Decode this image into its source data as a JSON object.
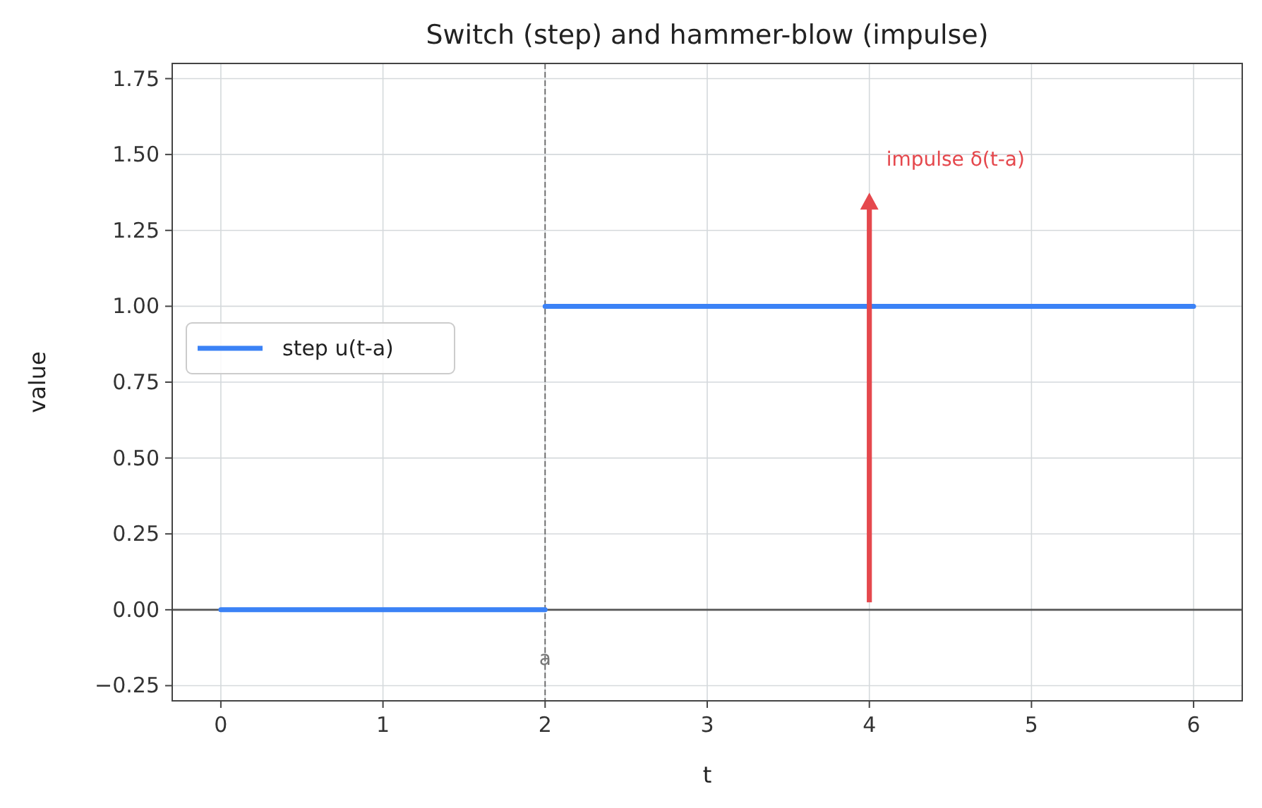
{
  "chart_data": {
    "type": "step",
    "title": "Switch (step) and hammer-blow (impulse)",
    "xlabel": "t",
    "ylabel": "value",
    "x": [
      0,
      2,
      2,
      6
    ],
    "series": [
      {
        "name": "step u(t-a)",
        "color": "#3b82f6",
        "values": [
          0,
          0,
          1,
          1
        ]
      }
    ],
    "xlim": [
      -0.3,
      6.3
    ],
    "xticks": [
      0,
      1,
      2,
      3,
      4,
      5,
      6
    ],
    "ylim": [
      -0.3,
      1.8
    ],
    "yticks": [
      {
        "value": -0.25,
        "label": "−0.25"
      },
      {
        "value": 0,
        "label": "0.00"
      },
      {
        "value": 0.25,
        "label": "0.25"
      },
      {
        "value": 0.5,
        "label": "0.50"
      },
      {
        "value": 0.75,
        "label": "0.75"
      },
      {
        "value": 1,
        "label": "1.00"
      },
      {
        "value": 1.25,
        "label": "1.25"
      },
      {
        "value": 1.5,
        "label": "1.50"
      },
      {
        "value": 1.75,
        "label": "1.75"
      }
    ],
    "grid": true,
    "legend": "left",
    "ref_lines": [
      {
        "axis": "x",
        "value": 2,
        "label": "a",
        "color": "#666666",
        "line_style": "dashed"
      },
      {
        "axis": "y",
        "value": 0,
        "color": "#555555",
        "line_style": "solid"
      }
    ],
    "annotations": [
      "impulse δ(t-a)"
    ]
  }
}
